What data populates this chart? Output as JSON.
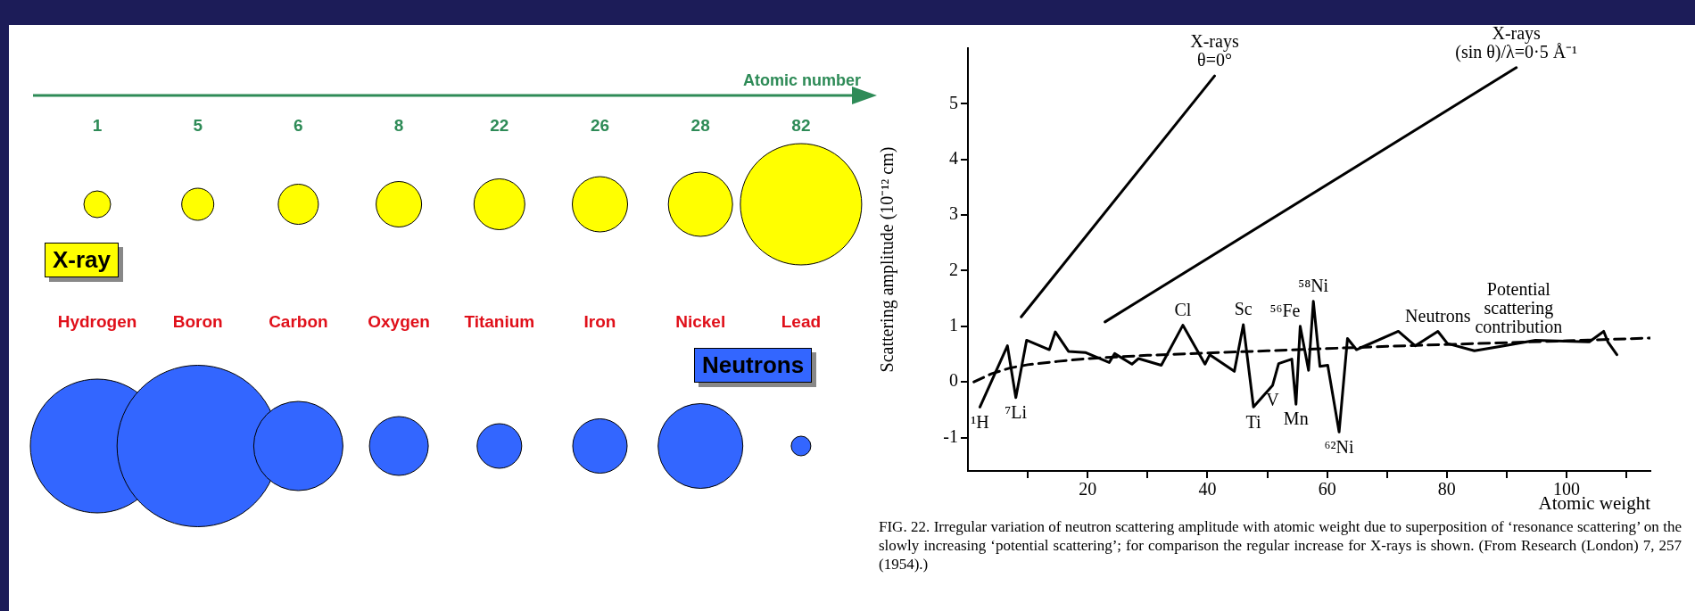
{
  "chart_data": [
    {
      "type": "other",
      "categories": [
        "Hydrogen",
        "Boron",
        "Carbon",
        "Oxygen",
        "Titanium",
        "Iron",
        "Nickel",
        "Lead"
      ],
      "annotations": [
        "Atomic number",
        "X-ray",
        "Neutrons",
        {
          "text": "1",
          "x": "Hydrogen"
        },
        {
          "text": "5",
          "x": "Boron"
        },
        {
          "text": "6",
          "x": "Carbon"
        },
        {
          "text": "8",
          "x": "Oxygen"
        },
        {
          "text": "22",
          "x": "Titanium"
        },
        {
          "text": "26",
          "x": "Iron"
        },
        {
          "text": "28",
          "x": "Nickel"
        },
        {
          "text": "82",
          "x": "Lead"
        }
      ]
    },
    {
      "type": "line",
      "xlabel": "Atomic weight",
      "ylabel": "Scattering amplitude (10⁻¹² cm)",
      "xlim": [
        0,
        114
      ],
      "ylim": [
        -1.6,
        6
      ],
      "xticks": [
        {
          "value": 10,
          "label": null
        },
        20,
        {
          "value": 30,
          "label": null
        },
        40,
        {
          "value": 50,
          "label": null
        },
        60,
        {
          "value": 70,
          "label": null
        },
        80,
        {
          "value": 90,
          "label": null
        },
        100,
        {
          "value": 110,
          "label": null
        }
      ],
      "yticks": [
        -1,
        0,
        1,
        2,
        3,
        4,
        5
      ],
      "series": [
        {
          "color": "#000000",
          "x": [
            2,
            6.6,
            8,
            9.8,
            13.6,
            14.6,
            16.8,
            19.6,
            23.6,
            24.5,
            27.4,
            28.5,
            32.3,
            35.9,
            39.6,
            40.4,
            44.5,
            46,
            47.7,
            50.9,
            51.9,
            54.1,
            54.8,
            55.5,
            56.9,
            57.7,
            58.8,
            60.1,
            62,
            63.4,
            64.9,
            71.9,
            74.7,
            78.5,
            80.1,
            84.6,
            89.5,
            94.8,
            103.8,
            106.2,
            106.9,
            108.4
          ],
          "values": [
            -0.45,
            0.65,
            -0.28,
            0.75,
            0.58,
            0.9,
            0.55,
            0.53,
            0.35,
            0.51,
            0.32,
            0.42,
            0.3,
            1.02,
            0.32,
            0.49,
            0.19,
            1.03,
            -0.45,
            -0.06,
            0.33,
            0.41,
            -0.4,
            1,
            0.21,
            1.45,
            0.28,
            0.3,
            -0.9,
            0.78,
            0.58,
            0.91,
            0.65,
            0.91,
            0.69,
            0.56,
            0.65,
            0.75,
            0.72,
            0.91,
            0.72,
            0.49
          ]
        },
        {
          "color": "#000000",
          "line_style": "dashed",
          "x": [
            1,
            4,
            7,
            10,
            15,
            20,
            30,
            40,
            50,
            60,
            70,
            85,
            100,
            114
          ],
          "values": [
            0,
            0.15,
            0.25,
            0.31,
            0.37,
            0.42,
            0.48,
            0.52,
            0.56,
            0.6,
            0.64,
            0.69,
            0.74,
            0.79
          ]
        },
        {
          "color": "#000000",
          "x": [
            8.9,
            41.2
          ],
          "values": [
            1.17,
            5.5
          ]
        },
        {
          "color": "#000000",
          "x": [
            22.9,
            91.6
          ],
          "values": [
            1.08,
            5.65
          ]
        }
      ],
      "annotations": [
        {
          "text": "¹H",
          "x": 2,
          "y": -0.45
        },
        {
          "text": "⁷Li",
          "x": 8,
          "y": -0.28
        },
        {
          "text": "Cl",
          "x": 35.9,
          "y": 1.02
        },
        {
          "text": "Sc",
          "x": 46,
          "y": 1.03
        },
        {
          "text": "Ti",
          "x": 47.7,
          "y": -0.45
        },
        {
          "text": "V",
          "x": 50.9,
          "y": -0.06
        },
        {
          "text": "Mn",
          "x": 54.8,
          "y": -0.4
        },
        {
          "text": "⁵⁶Fe",
          "x": 55.5,
          "y": 1
        },
        {
          "text": "⁵⁸Ni",
          "x": 57.7,
          "y": 1.45
        },
        {
          "text": "⁶²Ni",
          "x": 62,
          "y": -0.9
        },
        {
          "text": "Neutrons",
          "x": 78.5,
          "y": 0.91
        },
        {
          "text": "Potential\nscattering\ncontribution",
          "x": 92,
          "y": 0.72
        },
        {
          "text": "X-rays\nθ=0°",
          "x": 41.2,
          "y": 5.5
        },
        {
          "text": "X-rays\n(sin θ)/λ=0·5 Å⁻¹",
          "x": 91.6,
          "y": 5.65
        },
        "FIG. 22. Irregular variation of neutron scattering amplitude with atomic weight due to superposition of ‘resonance scattering’ on the slowly increasing ‘potential scattering’; for comparison the regular increase for X-rays is shown. (From Research (London) 7, 257 (1954).)"
      ]
    }
  ]
}
